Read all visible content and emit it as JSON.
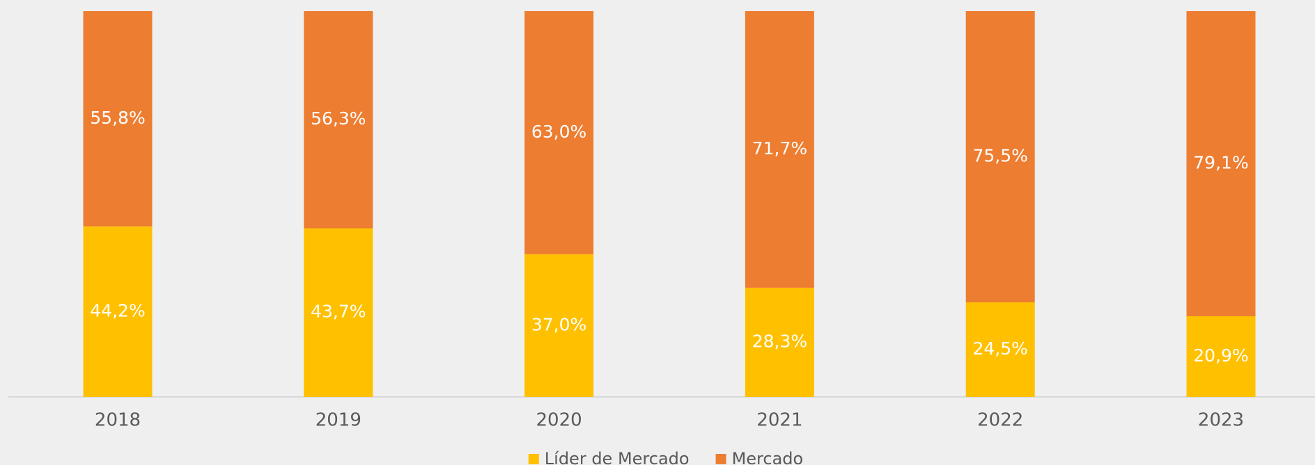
{
  "chart_data": {
    "type": "stacked_bar",
    "categories": [
      "2018",
      "2019",
      "2020",
      "2021",
      "2022",
      "2023"
    ],
    "series": [
      {
        "name": "Líder de Mercado",
        "color": "#FFC000",
        "values": [
          44.2,
          43.7,
          37.0,
          28.3,
          24.5,
          20.9
        ],
        "value_labels": [
          "44,2%",
          "43,7%",
          "37,0%",
          "28,3%",
          "24,5%",
          "20,9%"
        ]
      },
      {
        "name": "Mercado",
        "color": "#ED7D31",
        "values": [
          55.8,
          56.3,
          63.0,
          71.7,
          75.5,
          79.1
        ],
        "value_labels": [
          "55,8%",
          "56,3%",
          "63,0%",
          "71,7%",
          "75,5%",
          "79,1%"
        ]
      }
    ],
    "ylim": [
      0,
      100
    ],
    "legend": "bottom"
  }
}
